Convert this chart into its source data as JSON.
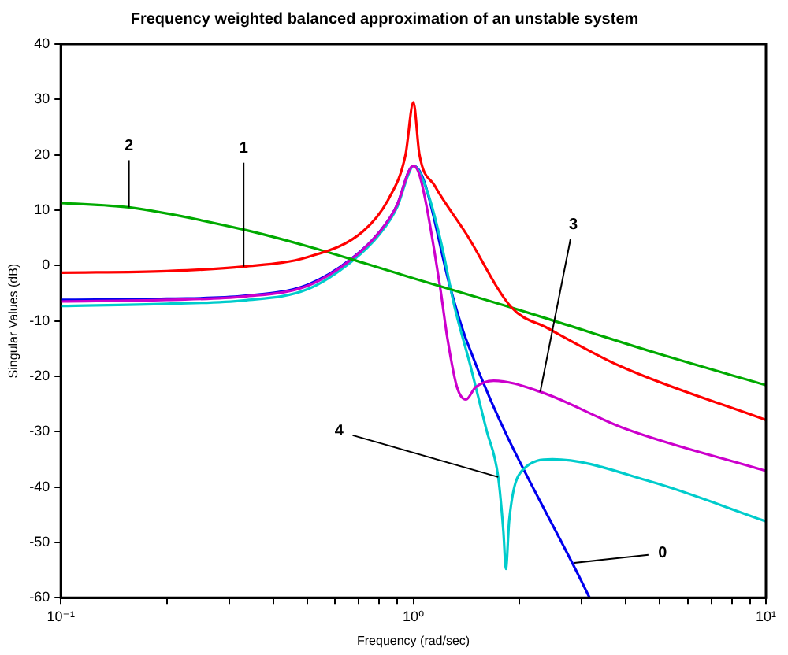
{
  "chart_data": {
    "type": "line",
    "title": "Frequency weighted balanced approximation of an unstable system",
    "xlabel": "Frequency (rad/sec)",
    "ylabel": "Singular Values (dB)",
    "log": "x",
    "grid": false,
    "legend": false,
    "marker": "none",
    "line_style": "solid",
    "xlim": [
      0.1,
      10
    ],
    "xticks": [
      {
        "value": 0.1,
        "label": "10⁻¹"
      },
      {
        "value": 0.2,
        "label": null
      },
      {
        "value": 0.3,
        "label": null
      },
      {
        "value": 0.4,
        "label": null
      },
      {
        "value": 0.5,
        "label": null
      },
      {
        "value": 0.6,
        "label": null
      },
      {
        "value": 0.7,
        "label": null
      },
      {
        "value": 0.8,
        "label": null
      },
      {
        "value": 0.9,
        "label": null
      },
      {
        "value": 1,
        "label": "10⁰"
      },
      {
        "value": 2,
        "label": null
      },
      {
        "value": 3,
        "label": null
      },
      {
        "value": 4,
        "label": null
      },
      {
        "value": 5,
        "label": null
      },
      {
        "value": 6,
        "label": null
      },
      {
        "value": 7,
        "label": null
      },
      {
        "value": 8,
        "label": null
      },
      {
        "value": 9,
        "label": null
      },
      {
        "value": 10,
        "label": "10¹"
      }
    ],
    "ylim": [
      -60,
      40
    ],
    "yticks": [
      -60,
      -50,
      -40,
      -30,
      -20,
      -10,
      0,
      10,
      20,
      30,
      40
    ],
    "series": [
      {
        "color": "#ff0000",
        "x": [
          0.1,
          0.2,
          0.33,
          0.5,
          0.72,
          0.85,
          0.95,
          1.0,
          1.04,
          1.15,
          1.41,
          1.9,
          2.4,
          3.87,
          10
        ],
        "values": [
          -1.3,
          -1.0,
          -0.2,
          1.5,
          6.2,
          12,
          20,
          29.5,
          20.1,
          14.4,
          5.8,
          -7.6,
          -11.3,
          -18.2,
          -27.9
        ]
      },
      {
        "color": "#00aa00",
        "x": [
          0.1,
          0.156,
          0.33,
          0.5,
          0.72,
          1.0,
          1.9,
          2.48,
          5,
          10
        ],
        "values": [
          11.3,
          10.5,
          6.5,
          3.5,
          0.5,
          -2.3,
          -7.6,
          -9.9,
          -16,
          -21.6
        ]
      },
      {
        "color": "#cc00cc",
        "x": [
          0.1,
          0.2,
          0.33,
          0.5,
          0.67,
          0.8,
          0.9,
          0.97,
          1.0,
          1.05,
          1.19,
          1.25,
          1.33,
          1.41,
          1.5,
          1.69,
          2.29,
          4,
          10
        ],
        "values": [
          -6.5,
          -6.2,
          -5.6,
          -3.7,
          1.2,
          6,
          11,
          17,
          18,
          15.5,
          -3.8,
          -13.3,
          -22,
          -24.2,
          -22,
          -20.8,
          -22.8,
          -29.5,
          -37.1
        ]
      },
      {
        "color": "#00cccc",
        "x": [
          0.1,
          0.2,
          0.33,
          0.5,
          0.67,
          0.8,
          0.9,
          0.97,
          1.0,
          1.1,
          1.2,
          1.31,
          1.45,
          1.61,
          1.74,
          1.8,
          1.83,
          1.87,
          2.03,
          2.48,
          4.7,
          10
        ],
        "values": [
          -7.3,
          -6.9,
          -6.3,
          -4.3,
          0.8,
          5.6,
          10.6,
          16.6,
          18,
          13,
          4,
          -7.6,
          -18,
          -29.6,
          -38.2,
          -48,
          -54.8,
          -46,
          -37.1,
          -35,
          -39,
          -46.2
        ]
      },
      {
        "color": "#0000ee",
        "x": [
          0.1,
          0.2,
          0.33,
          0.5,
          0.67,
          0.8,
          0.9,
          0.97,
          1.0,
          1.07,
          1.27,
          1.41,
          3.16
        ],
        "values": [
          -6.2,
          -6.0,
          -5.5,
          -3.5,
          1.3,
          6,
          11,
          17,
          18,
          15.4,
          -3.8,
          -13.3,
          -60
        ]
      }
    ],
    "annotations": [
      {
        "text": "0",
        "x": 2.86,
        "y": -53.7
      },
      {
        "text": "1",
        "x": 0.33,
        "y": -0.2
      },
      {
        "text": "2",
        "x": 0.156,
        "y": 10.5
      },
      {
        "text": "3",
        "x": 2.29,
        "y": -22.8
      },
      {
        "text": "4",
        "x": 1.74,
        "y": -38.2
      }
    ]
  }
}
